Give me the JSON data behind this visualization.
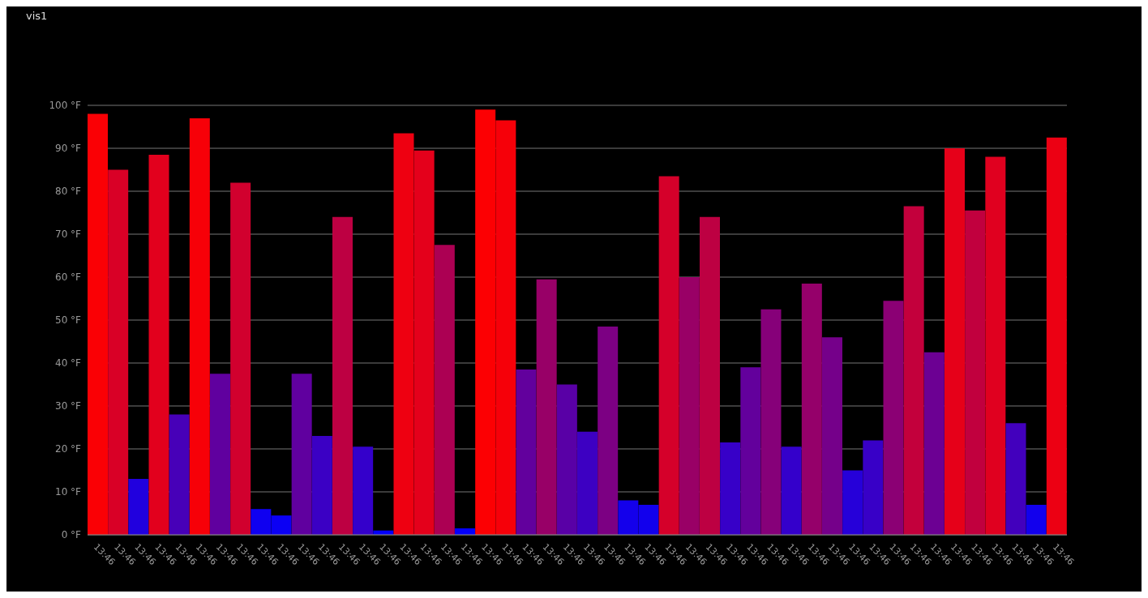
{
  "chart_data": {
    "type": "bar",
    "title": "vis1",
    "categories": [
      "13:46",
      "13:46",
      "13:46",
      "13:46",
      "13:46",
      "13:46",
      "13:46",
      "13:46",
      "13:46",
      "13:46",
      "13:46",
      "13:46",
      "13:46",
      "13:46",
      "13:46",
      "13:46",
      "13:46",
      "13:46",
      "13:46",
      "13:46",
      "13:46",
      "13:46",
      "13:46",
      "13:46",
      "13:46",
      "13:46",
      "13:46",
      "13:46",
      "13:46",
      "13:46",
      "13:46",
      "13:46",
      "13:46",
      "13:46",
      "13:46",
      "13:46",
      "13:46",
      "13:46",
      "13:46",
      "13:46",
      "13:46",
      "13:46",
      "13:46",
      "13:46",
      "13:46",
      "13:46",
      "13:46",
      "13:46"
    ],
    "values": [
      98,
      85,
      13,
      88.5,
      28,
      97,
      37.5,
      82,
      6,
      4.5,
      37.5,
      23,
      74,
      20.5,
      1,
      93.5,
      89.5,
      67.5,
      1.5,
      99,
      96.5,
      38.5,
      59.5,
      35,
      24,
      48.5,
      8,
      7,
      83.5,
      60,
      74,
      21.5,
      39,
      52.5,
      20.5,
      58.5,
      46,
      15,
      22,
      54.5,
      76.5,
      42.5,
      90,
      75.5,
      88,
      26,
      7,
      92.5
    ],
    "colors": [
      "#fa0005",
      "#d90026",
      "#2100de",
      "#e2001d",
      "#4700b8",
      "#f70008",
      "#60009f",
      "#d1002e",
      "#0f00f0",
      "#0b00f4",
      "#60009f",
      "#3b00c4",
      "#bd0042",
      "#3400cb",
      "#0300fc",
      "#ee0011",
      "#e4001b",
      "#ac0053",
      "#0400fb",
      "#fc0003",
      "#f60009",
      "#62009d",
      "#980067",
      "#5900a6",
      "#3d00c2",
      "#7c0083",
      "#1400eb",
      "#1200ed",
      "#d5002a",
      "#990066",
      "#bd0042",
      "#3700c8",
      "#63009c",
      "#860079",
      "#3400cb",
      "#95006a",
      "#75008a",
      "#2600d9",
      "#3800c7",
      "#8b0074",
      "#c3003c",
      "#6c0093",
      "#e60019",
      "#c1003e",
      "#e0001f",
      "#4200bd",
      "#1200ed",
      "#ec0013"
    ],
    "ylim": [
      0,
      100
    ],
    "yticks": [
      {
        "value": 0,
        "label": "0 °F"
      },
      {
        "value": 10,
        "label": "10 °F"
      },
      {
        "value": 20,
        "label": "20 °F"
      },
      {
        "value": 30,
        "label": "30 °F"
      },
      {
        "value": 40,
        "label": "40 °F"
      },
      {
        "value": 50,
        "label": "50 °F"
      },
      {
        "value": 60,
        "label": "60 °F"
      },
      {
        "value": 70,
        "label": "70 °F"
      },
      {
        "value": 80,
        "label": "80 °F"
      },
      {
        "value": 90,
        "label": "90 °F"
      },
      {
        "value": 100,
        "label": "100 °F"
      }
    ],
    "grid": "y"
  }
}
